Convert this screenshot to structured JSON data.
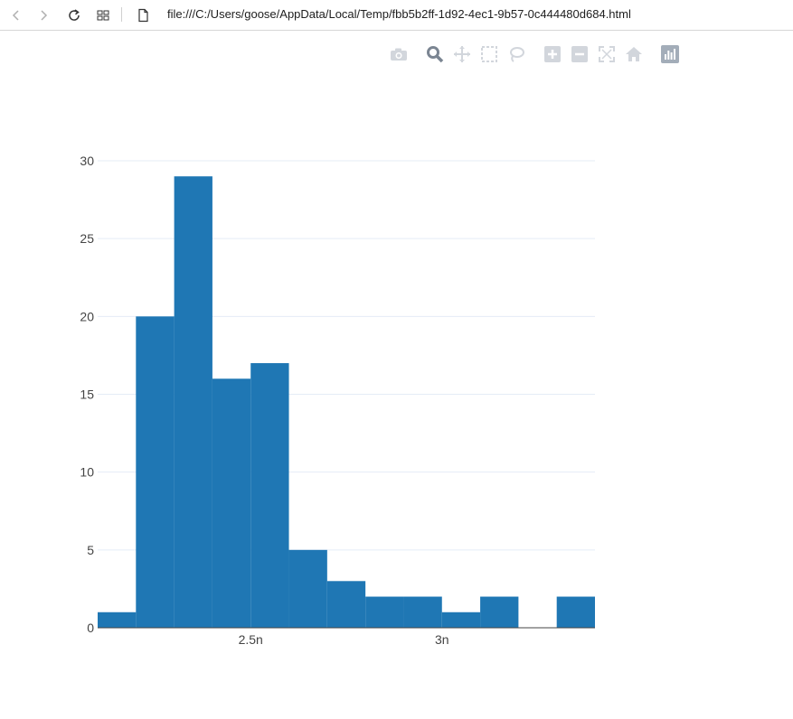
{
  "browser": {
    "url": "file:///C:/Users/goose/AppData/Local/Temp/fbb5b2ff-1d92-4ec1-9b57-0c444480d684.html",
    "icons": [
      "back-icon",
      "forward-icon",
      "reload-icon",
      "tabs-grid-icon",
      "file-icon"
    ]
  },
  "modebar": {
    "buttons": [
      "camera-icon",
      "zoom-icon",
      "pan-icon",
      "box-select-icon",
      "lasso-icon",
      "zoom-in-icon",
      "zoom-out-icon",
      "autoscale-icon",
      "home-icon",
      "plotly-logo-icon"
    ]
  },
  "chart_data": {
    "type": "histogram",
    "bins": [
      {
        "start": 2.1e-09,
        "end": 2.2e-09,
        "count": 1
      },
      {
        "start": 2.2e-09,
        "end": 2.3e-09,
        "count": 20
      },
      {
        "start": 2.3e-09,
        "end": 2.4e-09,
        "count": 29
      },
      {
        "start": 2.4e-09,
        "end": 2.5e-09,
        "count": 16
      },
      {
        "start": 2.5e-09,
        "end": 2.6e-09,
        "count": 17
      },
      {
        "start": 2.6e-09,
        "end": 2.7e-09,
        "count": 5
      },
      {
        "start": 2.7e-09,
        "end": 2.8e-09,
        "count": 3
      },
      {
        "start": 2.8e-09,
        "end": 2.9e-09,
        "count": 2
      },
      {
        "start": 2.9e-09,
        "end": 3e-09,
        "count": 2
      },
      {
        "start": 3e-09,
        "end": 3.1e-09,
        "count": 1
      },
      {
        "start": 3.1e-09,
        "end": 3.2e-09,
        "count": 2
      },
      {
        "start": 3.2e-09,
        "end": 3.3e-09,
        "count": 0
      },
      {
        "start": 3.3e-09,
        "end": 3.4e-09,
        "count": 2
      }
    ],
    "xlim": [
      2.1e-09,
      3.4e-09
    ],
    "ylim": [
      0,
      30
    ],
    "x_ticks": [
      {
        "value": 2.5e-09,
        "label": "2.5n"
      },
      {
        "value": 3e-09,
        "label": "3n"
      }
    ],
    "y_ticks": [
      {
        "value": 0,
        "label": "0"
      },
      {
        "value": 5,
        "label": "5"
      },
      {
        "value": 10,
        "label": "10"
      },
      {
        "value": 15,
        "label": "15"
      },
      {
        "value": 20,
        "label": "20"
      },
      {
        "value": 25,
        "label": "25"
      },
      {
        "value": 30,
        "label": "30"
      }
    ],
    "grid": true,
    "bar_color": "#1f77b4",
    "grid_color": "#e5ecf6",
    "title": "",
    "xlabel": "",
    "ylabel": ""
  }
}
